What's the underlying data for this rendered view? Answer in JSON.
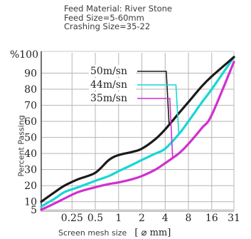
{
  "header": {
    "line1": "Feed Material: River Stone",
    "line2": "Feed Size=5-60mm",
    "line3": "Crashing Size=35-22"
  },
  "chart_data": {
    "type": "line",
    "title": "",
    "xlabel": "Screen mesh size",
    "xunit": "[ ⌀ mm]",
    "ylabel": "Percent Passing",
    "yaxis_title": "%100",
    "x_scale": "log",
    "xlim": [
      0.1,
      31
    ],
    "ylim": [
      5,
      100
    ],
    "x_ticks": [
      0.25,
      0.5,
      1,
      2,
      4,
      8,
      16,
      31
    ],
    "x_tick_labels": [
      "0.25",
      "0.5",
      "1",
      "2",
      "4",
      "8",
      "16",
      "31"
    ],
    "y_ticks": [
      5,
      10,
      20,
      30,
      40,
      50,
      60,
      70,
      80,
      90
    ],
    "y_tick_labels": [
      "5",
      "10",
      "20",
      "30",
      "40",
      "50",
      "60",
      "70",
      "80",
      "90"
    ],
    "grid": true,
    "legend_position": "top-center",
    "series": [
      {
        "name": "50m/sn",
        "color": "#1a1a1a",
        "points": [
          [
            0.1,
            10
          ],
          [
            0.15,
            16
          ],
          [
            0.2,
            20
          ],
          [
            0.3,
            24
          ],
          [
            0.5,
            28
          ],
          [
            0.75,
            36
          ],
          [
            1,
            39
          ],
          [
            1.5,
            41
          ],
          [
            2,
            43
          ],
          [
            3,
            49
          ],
          [
            4,
            55
          ],
          [
            6,
            65
          ],
          [
            8,
            72
          ],
          [
            12,
            82
          ],
          [
            16,
            88
          ],
          [
            31,
            100
          ]
        ]
      },
      {
        "name": "44m/sn",
        "color": "#18d6d6",
        "points": [
          [
            0.1,
            7
          ],
          [
            0.15,
            12
          ],
          [
            0.2,
            16
          ],
          [
            0.3,
            19
          ],
          [
            0.5,
            23
          ],
          [
            0.75,
            26
          ],
          [
            1,
            29
          ],
          [
            1.5,
            33
          ],
          [
            2,
            36
          ],
          [
            3,
            40
          ],
          [
            4,
            43
          ],
          [
            6,
            52
          ],
          [
            8,
            60
          ],
          [
            12,
            72
          ],
          [
            16,
            80
          ],
          [
            31,
            100
          ]
        ]
      },
      {
        "name": "35m/sn",
        "color": "#d12fcf",
        "points": [
          [
            0.1,
            5
          ],
          [
            0.15,
            9
          ],
          [
            0.2,
            12
          ],
          [
            0.3,
            16
          ],
          [
            0.5,
            19
          ],
          [
            0.75,
            21
          ],
          [
            1,
            22
          ],
          [
            1.5,
            24
          ],
          [
            2,
            26
          ],
          [
            3,
            30
          ],
          [
            4,
            34
          ],
          [
            6,
            40
          ],
          [
            8,
            46
          ],
          [
            12,
            56
          ],
          [
            16,
            64
          ],
          [
            31,
            97
          ]
        ]
      }
    ]
  }
}
